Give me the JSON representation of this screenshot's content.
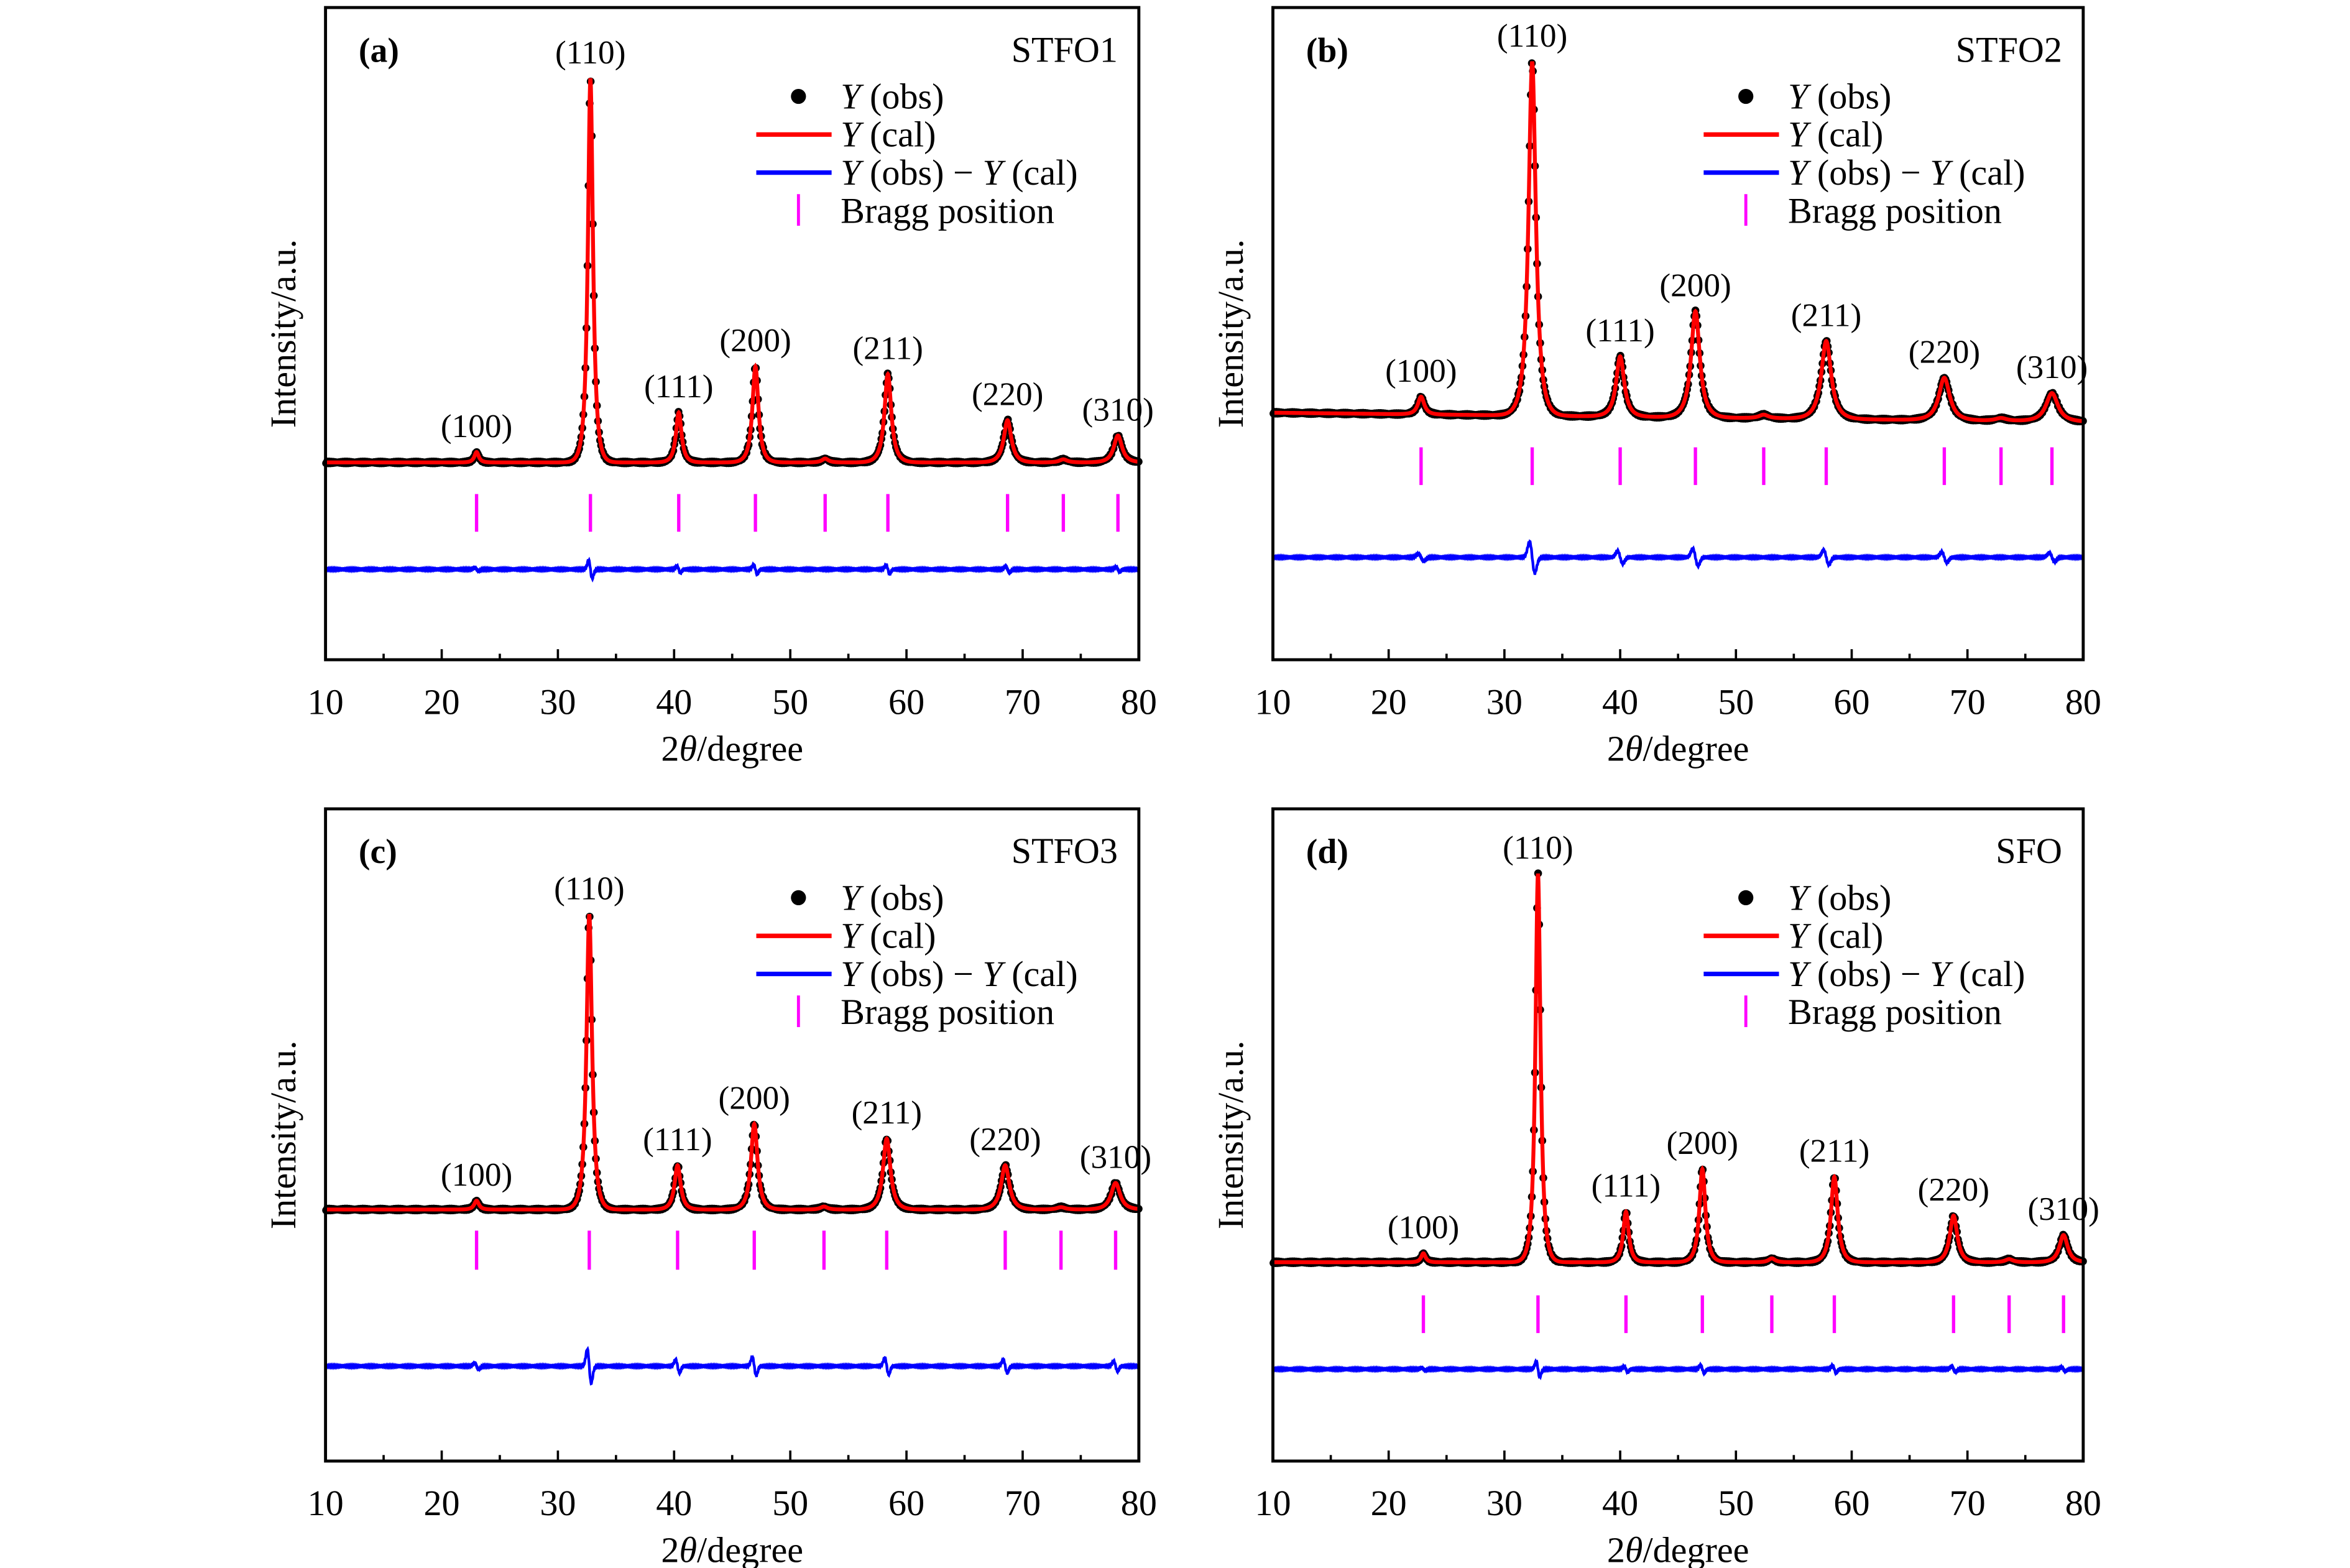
{
  "chart_data": [
    {
      "type": "line",
      "panel_label": "(a)",
      "sample": "STFO1",
      "xlabel_prefix": "2",
      "xlabel_symbol": "θ",
      "xlabel_suffix": "/degree",
      "ylabel": "Intensity/a.u.",
      "xlim": [
        10,
        80
      ],
      "xticks": [
        10,
        20,
        30,
        40,
        50,
        60,
        70,
        80
      ],
      "yticks": [],
      "peaks": [
        {
          "hkl": "(100)",
          "two_theta": 23.0,
          "rel_intensity": 2.7
        },
        {
          "hkl": "(110)",
          "two_theta": 32.8,
          "rel_intensity": 100
        },
        {
          "hkl": "(111)",
          "two_theta": 40.4,
          "rel_intensity": 13
        },
        {
          "hkl": "(200)",
          "two_theta": 47.0,
          "rel_intensity": 25
        },
        {
          "hkl": "(211)",
          "two_theta": 58.4,
          "rel_intensity": 23
        },
        {
          "hkl": "(220)",
          "two_theta": 68.7,
          "rel_intensity": 11
        },
        {
          "hkl": "(310)",
          "two_theta": 78.2,
          "rel_intensity": 7
        }
      ],
      "minor_peaks": [
        {
          "two_theta": 53.0,
          "rel_intensity": 1
        },
        {
          "two_theta": 73.5,
          "rel_intensity": 0.8
        }
      ],
      "bragg_positions": [
        23.0,
        32.8,
        40.4,
        47.0,
        53.0,
        58.4,
        68.7,
        73.5,
        78.2
      ]
    },
    {
      "type": "line",
      "panel_label": "(b)",
      "sample": "STFO2",
      "xlabel_prefix": "2",
      "xlabel_symbol": "θ",
      "xlabel_suffix": "/degree",
      "ylabel": "Intensity/a.u.",
      "xlim": [
        10,
        80
      ],
      "xticks": [
        10,
        20,
        30,
        40,
        50,
        60,
        70,
        80
      ],
      "yticks": [],
      "peaks": [
        {
          "hkl": "(100)",
          "two_theta": 22.8,
          "rel_intensity": 5
        },
        {
          "hkl": "(110)",
          "two_theta": 32.4,
          "rel_intensity": 100
        },
        {
          "hkl": "(111)",
          "two_theta": 40.0,
          "rel_intensity": 17
        },
        {
          "hkl": "(200)",
          "two_theta": 46.5,
          "rel_intensity": 30
        },
        {
          "hkl": "(211)",
          "two_theta": 57.8,
          "rel_intensity": 22
        },
        {
          "hkl": "(220)",
          "two_theta": 68.0,
          "rel_intensity": 12
        },
        {
          "hkl": "(310)",
          "two_theta": 77.3,
          "rel_intensity": 8
        }
      ],
      "minor_peaks": [
        {
          "two_theta": 52.4,
          "rel_intensity": 1
        },
        {
          "two_theta": 72.9,
          "rel_intensity": 0.8
        }
      ],
      "bragg_positions": [
        22.8,
        32.4,
        40.0,
        46.5,
        52.4,
        57.8,
        68.0,
        72.9,
        77.3
      ]
    },
    {
      "type": "line",
      "panel_label": "(c)",
      "sample": "STFO3",
      "xlabel_prefix": "2",
      "xlabel_symbol": "θ",
      "xlabel_suffix": "/degree",
      "ylabel": "Intensity/a.u.",
      "xlim": [
        10,
        80
      ],
      "xticks": [
        10,
        20,
        30,
        40,
        50,
        60,
        70,
        80
      ],
      "yticks": [],
      "peaks": [
        {
          "hkl": "(100)",
          "two_theta": 23.0,
          "rel_intensity": 3
        },
        {
          "hkl": "(110)",
          "two_theta": 32.7,
          "rel_intensity": 100
        },
        {
          "hkl": "(111)",
          "two_theta": 40.3,
          "rel_intensity": 15
        },
        {
          "hkl": "(200)",
          "two_theta": 46.9,
          "rel_intensity": 29
        },
        {
          "hkl": "(211)",
          "two_theta": 58.3,
          "rel_intensity": 24
        },
        {
          "hkl": "(220)",
          "two_theta": 68.5,
          "rel_intensity": 15
        },
        {
          "hkl": "(310)",
          "two_theta": 78.0,
          "rel_intensity": 9
        }
      ],
      "minor_peaks": [
        {
          "two_theta": 52.9,
          "rel_intensity": 1
        },
        {
          "two_theta": 73.3,
          "rel_intensity": 0.8
        }
      ],
      "bragg_positions": [
        23.0,
        32.7,
        40.3,
        46.9,
        52.9,
        58.3,
        68.5,
        73.3,
        78.0
      ]
    },
    {
      "type": "line",
      "panel_label": "(d)",
      "sample": "SFO",
      "xlabel_prefix": "2",
      "xlabel_symbol": "θ",
      "xlabel_suffix": "/degree",
      "ylabel": "Intensity/a.u.",
      "xlim": [
        10,
        80
      ],
      "xticks": [
        10,
        20,
        30,
        40,
        50,
        60,
        70,
        80
      ],
      "yticks": [],
      "peaks": [
        {
          "hkl": "(100)",
          "two_theta": 23.0,
          "rel_intensity": 2.3
        },
        {
          "hkl": "(110)",
          "two_theta": 32.9,
          "rel_intensity": 100
        },
        {
          "hkl": "(111)",
          "two_theta": 40.5,
          "rel_intensity": 13
        },
        {
          "hkl": "(200)",
          "two_theta": 47.1,
          "rel_intensity": 24
        },
        {
          "hkl": "(211)",
          "two_theta": 58.5,
          "rel_intensity": 22
        },
        {
          "hkl": "(220)",
          "two_theta": 68.8,
          "rel_intensity": 12
        },
        {
          "hkl": "(310)",
          "two_theta": 78.3,
          "rel_intensity": 7
        }
      ],
      "minor_peaks": [
        {
          "two_theta": 53.1,
          "rel_intensity": 1
        },
        {
          "two_theta": 73.6,
          "rel_intensity": 0.8
        }
      ],
      "bragg_positions": [
        23.0,
        32.9,
        40.5,
        47.1,
        53.1,
        58.5,
        68.8,
        73.6,
        78.3
      ]
    }
  ],
  "legend": {
    "items": [
      {
        "symbol": "Y",
        "text": " (obs)",
        "marker": "dot"
      },
      {
        "symbol": "Y",
        "text": " (cal)",
        "marker": "line"
      },
      {
        "symbol": "Y",
        "text": " (obs) − ",
        "symbol2": "Y",
        "text2": " (cal)",
        "marker": "line"
      },
      {
        "text": "Bragg position",
        "marker": "tick"
      }
    ]
  },
  "colors": {
    "obs": "#000000",
    "cal": "#ff0000",
    "diff": "#0000ff",
    "bragg": "#ff00ff"
  }
}
